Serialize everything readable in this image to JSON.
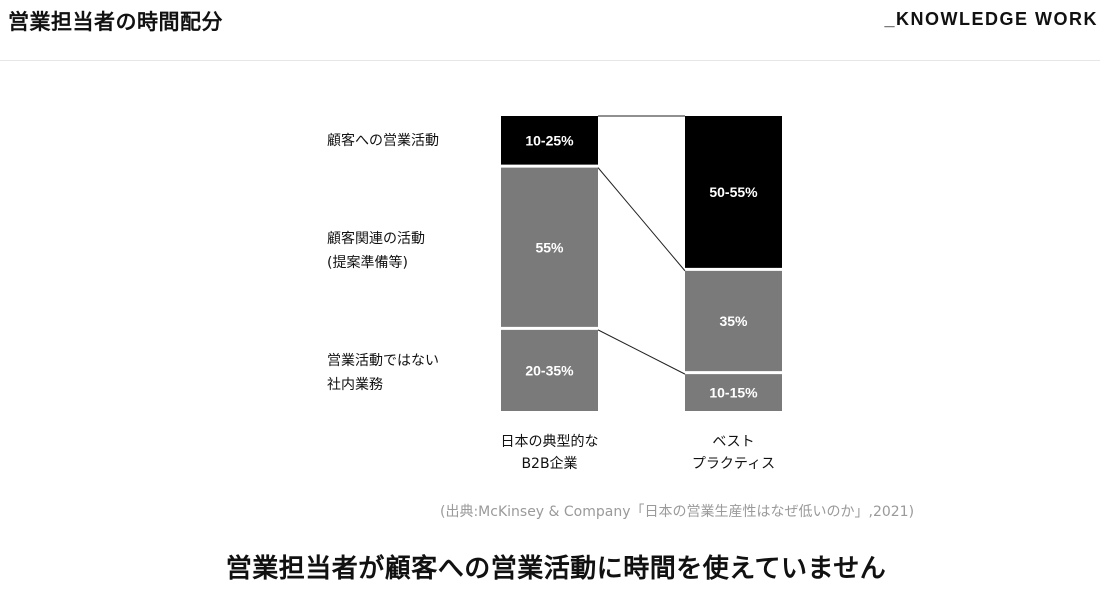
{
  "header": {
    "title": "営業担当者の時間配分",
    "brand": "_KNOWLEDGE WORK"
  },
  "chart_data": {
    "type": "bar",
    "stacked": true,
    "categories": [
      [
        "日本の典型的な",
        "B2B企業"
      ],
      [
        "ベスト",
        "プラクティス"
      ]
    ],
    "row_labels": [
      [
        "顧客への営業活動"
      ],
      [
        "顧客関連の活動",
        "(提案準備等)"
      ],
      [
        "営業活動ではない",
        "社内業務"
      ]
    ],
    "series": [
      {
        "key": "customer_sales",
        "values": [
          17.5,
          52.5
        ],
        "labels": [
          "10-25%",
          "50-55%"
        ],
        "color": "#000000"
      },
      {
        "key": "customer_related",
        "values": [
          55,
          35
        ],
        "labels": [
          "55%",
          "35%"
        ],
        "color": "#7a7a7a"
      },
      {
        "key": "internal",
        "values": [
          27.5,
          12.5
        ],
        "labels": [
          "20-35%",
          "10-15%"
        ],
        "color": "#7a7a7a"
      }
    ],
    "ylim": [
      0,
      100
    ]
  },
  "source": "(出典:McKinsey & Company「日本の営業生産性はなぜ低いのか」,2021)",
  "message": "営業担当者が顧客への営業活動に時間を使えていません"
}
